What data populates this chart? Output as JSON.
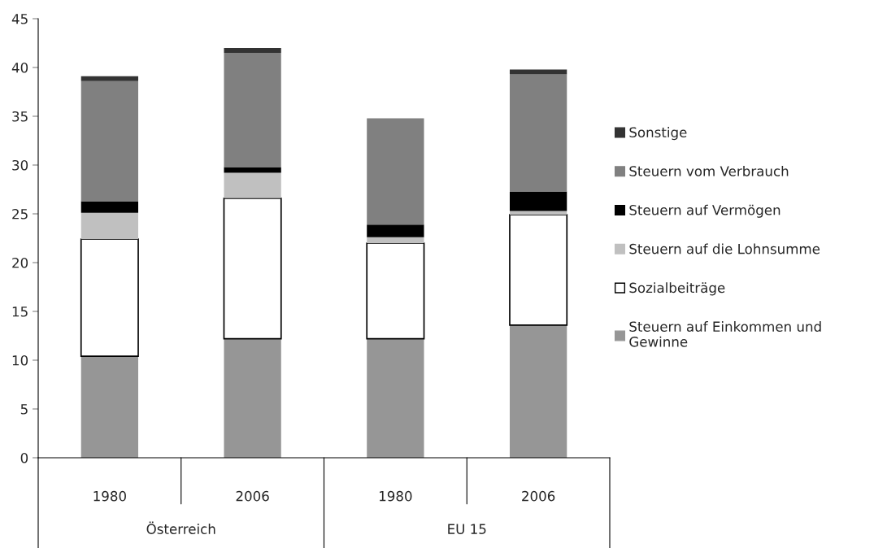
{
  "chart_data": {
    "type": "bar",
    "stacked": true,
    "categories": [
      "1980",
      "2006",
      "1980",
      "2006"
    ],
    "annotations": [
      "Österreich",
      "EU 15"
    ],
    "series": [
      {
        "name": "Steuern auf Einkommen und\nGewinne",
        "color": "#969696",
        "values": [
          10.4,
          12.2,
          12.2,
          13.6
        ]
      },
      {
        "name": "Sozialbeiträge",
        "color": "#ffffff",
        "values": [
          12.0,
          14.4,
          9.8,
          11.3
        ]
      },
      {
        "name": "Steuern auf die Lohnsumme",
        "color": "#c0c0c0",
        "values": [
          2.7,
          2.6,
          0.6,
          0.4
        ]
      },
      {
        "name": "Steuern auf Vermögen",
        "color": "#000000",
        "values": [
          1.2,
          0.6,
          1.3,
          2.0
        ]
      },
      {
        "name": "Steuern vom Verbrauch",
        "color": "#808080",
        "values": [
          12.3,
          11.7,
          10.9,
          12.0
        ]
      },
      {
        "name": "Sonstige",
        "color": "#333333",
        "values": [
          0.5,
          0.5,
          0,
          0.5
        ]
      }
    ],
    "ylim": [
      0,
      45
    ],
    "yticks": [
      0,
      5,
      10,
      15,
      20,
      25,
      30,
      35,
      40,
      45
    ],
    "grid": false,
    "legend": "right"
  }
}
